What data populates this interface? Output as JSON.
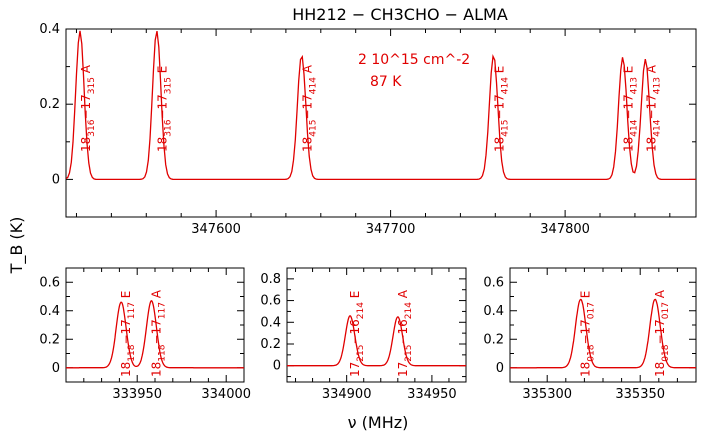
{
  "chart_data": {
    "title": "HH212 − CH3CHO − ALMA",
    "xlabel": "ν (MHz)",
    "ylabel": "T_B (K)",
    "annotations": [
      "2 10^15 cm^-2",
      "87 K"
    ],
    "colors": {
      "observed": "#000000",
      "model": "#e00000"
    },
    "panels": [
      {
        "type": "line",
        "xlim": [
          347514,
          347875
        ],
        "ylim": [
          -0.1,
          0.4
        ],
        "xticks": [
          347600,
          347700,
          347800
        ],
        "yticks": [
          0,
          0.2,
          0.4
        ],
        "series": [],
        "lines": [
          {
            "label": "18_316−17_315 A",
            "x": 347522,
            "peak": 0.395
          },
          {
            "label": "18_316−17_315 E",
            "x": 347566,
            "peak": 0.395
          },
          {
            "label": "18_415−17_414 A",
            "x": 347649,
            "peak": 0.33
          },
          {
            "label": "18_415−17_414 E",
            "x": 347759,
            "peak": 0.33
          },
          {
            "label": "18_414−17_413 E",
            "x": 347833,
            "peak": 0.325
          },
          {
            "label": "18_414−17_413 A",
            "x": 347846,
            "peak": 0.32
          }
        ]
      },
      {
        "type": "line",
        "xlim": [
          333910,
          334010
        ],
        "ylim": [
          -0.1,
          0.7
        ],
        "xticks": [
          333950,
          334000
        ],
        "yticks": [
          0,
          0.2,
          0.4,
          0.6
        ],
        "series": [],
        "lines": [
          {
            "label": "18_118−17_117 E",
            "x": 333941,
            "peak": 0.46
          },
          {
            "label": "18_118−17_117 A",
            "x": 333958,
            "peak": 0.47
          }
        ]
      },
      {
        "type": "line",
        "xlim": [
          334865,
          334970
        ],
        "ylim": [
          -0.15,
          0.9
        ],
        "xticks": [
          334900,
          334950
        ],
        "yticks": [
          0,
          0.2,
          0.4,
          0.6,
          0.8
        ],
        "series": [],
        "lines": [
          {
            "label": "17_215−16_214 E",
            "x": 334902,
            "peak": 0.46
          },
          {
            "label": "17_215−16_214 A",
            "x": 334930,
            "peak": 0.45
          }
        ]
      },
      {
        "type": "line",
        "xlim": [
          335280,
          335380
        ],
        "ylim": [
          -0.1,
          0.7
        ],
        "xticks": [
          335300,
          335350
        ],
        "yticks": [
          0,
          0.2,
          0.4,
          0.6
        ],
        "series": [],
        "lines": [
          {
            "label": "18_018−17_017 E",
            "x": 335318,
            "peak": 0.48
          },
          {
            "label": "18_018−17_017 A",
            "x": 335358,
            "peak": 0.48
          }
        ]
      }
    ]
  }
}
